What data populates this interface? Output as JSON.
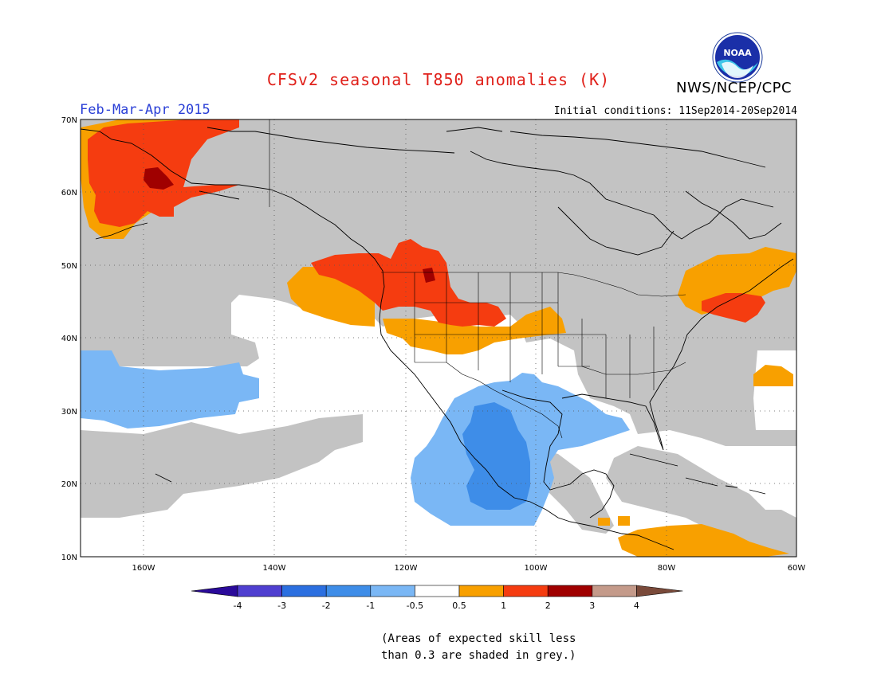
{
  "header": {
    "title": "CFSv2 seasonal T850 anomalies (K)",
    "period": "Feb-Mar-Apr 2015",
    "initial_conditions": "Initial conditions: 11Sep2014-20Sep2014",
    "agency": "NWS/NCEP/CPC",
    "logo_text": "NOAA"
  },
  "map": {
    "lat_labels": [
      "70N",
      "60N",
      "50N",
      "40N",
      "30N",
      "20N",
      "10N"
    ],
    "lon_labels": [
      "160W",
      "140W",
      "120W",
      "100W",
      "80W",
      "60W"
    ],
    "colors": {
      "grey_low_skill": "#c3c3c3",
      "neutral": "#ffffff",
      "neg_0.5_1": "#7ab7f5",
      "neg_1_2": "#3e8de8",
      "pos_0.5_1": "#f8a000",
      "pos_1_2": "#f53c10",
      "pos_2_3": "#a00000"
    }
  },
  "colorbar": {
    "labels": [
      "-4",
      "-3",
      "-2",
      "-1",
      "-0.5",
      "0.5",
      "1",
      "2",
      "3",
      "4"
    ],
    "colors": [
      "#2a0a9a",
      "#4f3fd0",
      "#2b6fe0",
      "#3e8de8",
      "#7ab7f5",
      "#ffffff",
      "#f8a000",
      "#f53c10",
      "#a00000",
      "#c49a8a",
      "#7a4a3a"
    ]
  },
  "note": {
    "line1": "(Areas of expected skill less",
    "line2": "than 0.3 are shaded in grey.)"
  }
}
